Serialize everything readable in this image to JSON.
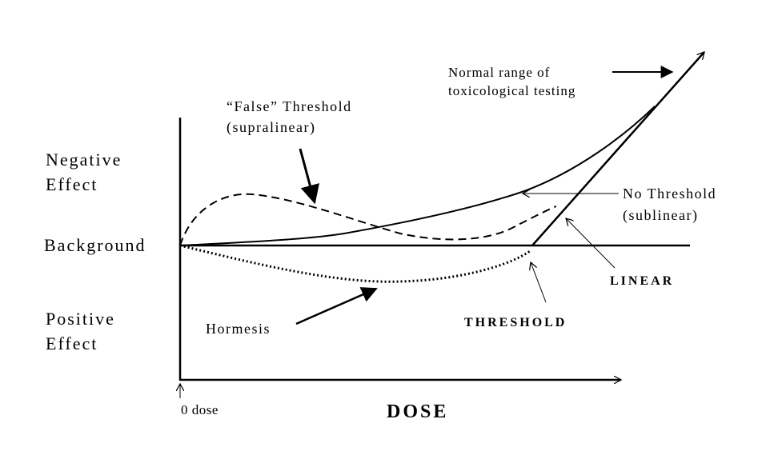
{
  "axis_labels": {
    "negative": [
      "Negative",
      "Effect"
    ],
    "background": "Background",
    "positive": [
      "Positive",
      "Effect"
    ],
    "x": "DOSE",
    "origin": "0 dose"
  },
  "annotations": {
    "false_threshold": [
      "“False” Threshold",
      "(supralinear)"
    ],
    "normal_range": [
      "Normal range of",
      "toxicological testing"
    ],
    "no_threshold": [
      "No Threshold",
      "(sublinear)"
    ],
    "linear": "LINEAR",
    "threshold": "THRESHOLD",
    "hormesis": "Hormesis"
  }
}
